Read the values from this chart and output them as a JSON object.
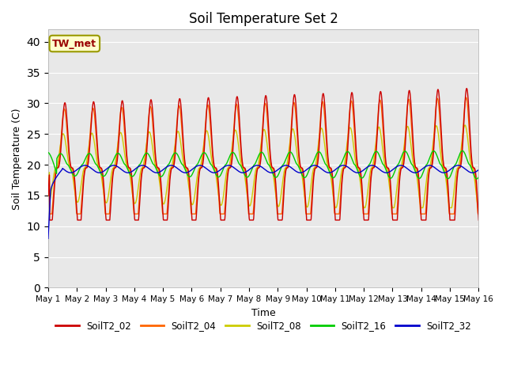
{
  "title": "Soil Temperature Set 2",
  "xlabel": "Time",
  "ylabel": "Soil Temperature (C)",
  "ylim": [
    0,
    42
  ],
  "yticks": [
    0,
    5,
    10,
    15,
    20,
    25,
    30,
    35,
    40
  ],
  "series_colors": {
    "SoilT2_02": "#cc0000",
    "SoilT2_04": "#ff6600",
    "SoilT2_08": "#cccc00",
    "SoilT2_16": "#00cc00",
    "SoilT2_32": "#0000cc"
  },
  "annotation_text": "TW_met",
  "plot_bg_color": "#e8e8e8",
  "grid_color": "white",
  "n_points": 1440
}
